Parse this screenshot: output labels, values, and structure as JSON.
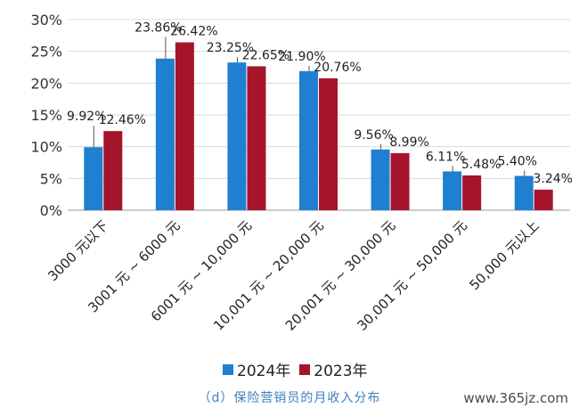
{
  "chart_data": {
    "type": "bar",
    "title": "",
    "xlabel": "",
    "ylabel": "",
    "ylim": [
      0,
      30
    ],
    "yticks": [
      "0%",
      "5%",
      "10%",
      "15%",
      "20%",
      "25%",
      "30%"
    ],
    "grid": true,
    "legend_position": "bottom",
    "categories": [
      "3000 元以下",
      "3001 元 ~ 6000 元",
      "6001 元 ~ 10,000 元",
      "10,001 元 ~ 20,000 元",
      "20,001 元 ~ 30,000 元",
      "30,001 元 ~ 50,000 元",
      "50,000 元以上"
    ],
    "series": [
      {
        "name": "2024年",
        "color": "#1f7fd1",
        "values": [
          9.92,
          23.86,
          23.25,
          21.9,
          9.56,
          6.11,
          5.4
        ],
        "labels": [
          "9.92%",
          "23.86%",
          "23.25%",
          "21.90%",
          "9.56%",
          "6.11%",
          "5.40%"
        ]
      },
      {
        "name": "2023年",
        "color": "#a5142b",
        "values": [
          12.46,
          26.42,
          22.65,
          20.76,
          8.99,
          5.48,
          3.24
        ],
        "labels": [
          "12.46%",
          "26.42%",
          "22.65%",
          "20.76%",
          "8.99%",
          "5.48%",
          "3.24%"
        ]
      }
    ]
  },
  "caption": "（d）保险营销员的月收入分布",
  "watermark": "www.365jz.com"
}
